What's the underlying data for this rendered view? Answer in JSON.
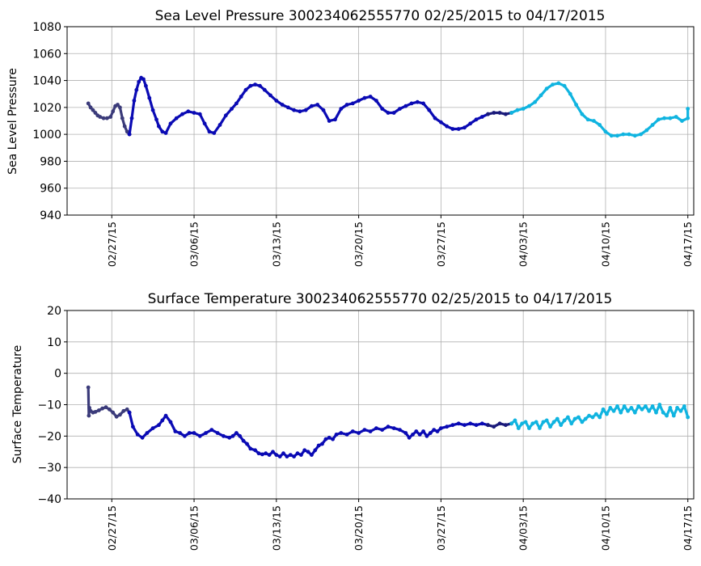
{
  "chart_data": [
    {
      "type": "scatter",
      "title": "Sea Level Pressure 300234062555770  02/25/2015 to 04/17/2015",
      "xlabel": "",
      "ylabel": "Sea Level Pressure",
      "xlim": [
        -1.8,
        51.5
      ],
      "ylim": [
        940,
        1080
      ],
      "yticks": [
        940,
        960,
        980,
        1000,
        1020,
        1040,
        1060,
        1080
      ],
      "xticks": [
        {
          "day": 2,
          "label": "02/27/15"
        },
        {
          "day": 9,
          "label": "03/06/15"
        },
        {
          "day": 16,
          "label": "03/13/15"
        },
        {
          "day": 23,
          "label": "03/20/15"
        },
        {
          "day": 30,
          "label": "03/27/15"
        },
        {
          "day": 37,
          "label": "04/03/15"
        },
        {
          "day": 44,
          "label": "04/10/15"
        },
        {
          "day": 51,
          "label": "04/17/15"
        }
      ],
      "grid": true,
      "x_units": "days since 02/25/2015",
      "series": [
        {
          "name": "segment 1",
          "color": "#3b3b7a",
          "x": [
            0.0,
            0.2,
            0.4,
            0.6,
            0.8,
            1.0,
            1.3,
            1.6,
            1.9,
            2.1,
            2.3,
            2.5,
            2.7,
            2.9,
            3.1,
            3.3,
            3.5
          ],
          "y": [
            1023,
            1020,
            1018,
            1016,
            1014,
            1013,
            1012,
            1012,
            1013,
            1017,
            1021,
            1022,
            1020,
            1012,
            1006,
            1002,
            1000
          ]
        },
        {
          "name": "segment 2",
          "color": "#0a0ab4",
          "x": [
            3.5,
            3.7,
            3.9,
            4.1,
            4.3,
            4.5,
            4.7,
            4.9,
            5.2,
            5.5,
            5.8,
            6.0,
            6.3,
            6.6,
            7.0,
            7.5,
            8.0,
            8.5,
            9.0,
            9.5,
            9.9,
            10.3,
            10.7,
            11.2,
            11.7,
            12.2,
            12.6,
            13.0,
            13.4,
            13.8,
            14.2,
            14.6,
            15.0,
            15.5,
            16.0,
            16.5,
            17.0,
            17.5,
            18.0,
            18.5,
            19.0,
            19.5,
            20.0,
            20.5,
            21.0,
            21.5,
            22.0,
            22.5,
            23.0,
            23.5,
            24.0,
            24.5,
            25.0,
            25.5,
            26.0,
            26.5,
            27.0,
            27.5,
            28.0,
            28.5,
            29.0,
            29.5,
            30.0,
            30.5,
            31.0,
            31.5,
            32.0,
            32.5,
            33.0,
            33.5,
            34.0
          ],
          "y": [
            1000,
            1012,
            1025,
            1033,
            1039,
            1042,
            1041,
            1036,
            1027,
            1018,
            1011,
            1006,
            1002,
            1001,
            1008,
            1012,
            1015,
            1017,
            1016,
            1015,
            1008,
            1002,
            1001,
            1007,
            1014,
            1019,
            1023,
            1028,
            1033,
            1036,
            1037,
            1036,
            1033,
            1029,
            1025,
            1022,
            1020,
            1018,
            1017,
            1018,
            1021,
            1022,
            1018,
            1010,
            1011,
            1019,
            1022,
            1023,
            1025,
            1027,
            1028,
            1025,
            1019,
            1016,
            1016,
            1019,
            1021,
            1023,
            1024,
            1023,
            1018,
            1012,
            1009,
            1006,
            1004,
            1004,
            1005,
            1008,
            1011,
            1013,
            1015
          ]
        },
        {
          "name": "segment 3",
          "color": "#1a1a7a",
          "x": [
            34.0,
            34.5,
            35.0,
            35.5,
            36.0
          ],
          "y": [
            1015,
            1016,
            1016,
            1015,
            1016
          ]
        },
        {
          "name": "segment 4",
          "color": "#10b4e0",
          "x": [
            36.0,
            36.5,
            37.0,
            37.5,
            38.0,
            38.5,
            39.0,
            39.5,
            40.0,
            40.5,
            41.0,
            41.5,
            42.0,
            42.5,
            43.0,
            43.5,
            44.0,
            44.5,
            45.0,
            45.5,
            46.0,
            46.5,
            47.0,
            47.5,
            48.0,
            48.5,
            49.0,
            49.5,
            50.0,
            50.5,
            51.0,
            51.0
          ],
          "y": [
            1016,
            1018,
            1019,
            1021,
            1024,
            1029,
            1034,
            1037,
            1038,
            1036,
            1030,
            1022,
            1015,
            1011,
            1010,
            1007,
            1002,
            999,
            999,
            1000,
            1000,
            999,
            1000,
            1003,
            1007,
            1011,
            1012,
            1012,
            1013,
            1010,
            1012,
            1019
          ]
        }
      ]
    },
    {
      "type": "scatter",
      "title": "Surface Temperature 300234062555770  02/25/2015 to 04/17/2015",
      "xlabel": "",
      "ylabel": "Surface Temperature",
      "xlim": [
        -1.8,
        51.5
      ],
      "ylim": [
        -40,
        20
      ],
      "yticks": [
        -40,
        -30,
        -20,
        -10,
        0,
        10,
        20
      ],
      "ytick_labels": [
        "−40",
        "−30",
        "−20",
        "−10",
        "0",
        "10",
        "20"
      ],
      "xticks": [
        {
          "day": 2,
          "label": "02/27/15"
        },
        {
          "day": 9,
          "label": "03/06/15"
        },
        {
          "day": 16,
          "label": "03/13/15"
        },
        {
          "day": 23,
          "label": "03/20/15"
        },
        {
          "day": 30,
          "label": "03/27/15"
        },
        {
          "day": 37,
          "label": "04/03/15"
        },
        {
          "day": 44,
          "label": "04/10/15"
        },
        {
          "day": 51,
          "label": "04/17/15"
        }
      ],
      "grid": true,
      "x_units": "days since 02/25/2015",
      "series": [
        {
          "name": "segment 1",
          "color": "#3b3b7a",
          "x": [
            0.0,
            0.05,
            0.1,
            0.2,
            0.4,
            0.6,
            0.9,
            1.2,
            1.5,
            1.8,
            2.1,
            2.4,
            2.7,
            3.0,
            3.3,
            3.5
          ],
          "y": [
            -4.5,
            -13.5,
            -11.0,
            -12.0,
            -12.5,
            -12.3,
            -11.8,
            -11.2,
            -10.8,
            -11.5,
            -12.5,
            -13.8,
            -13.2,
            -12.0,
            -11.5,
            -12.5
          ]
        },
        {
          "name": "segment 2",
          "color": "#0a0ab4",
          "x": [
            3.5,
            3.8,
            4.2,
            4.6,
            5.0,
            5.5,
            6.0,
            6.3,
            6.6,
            7.0,
            7.4,
            7.8,
            8.2,
            8.6,
            9.0,
            9.5,
            10.0,
            10.5,
            11.0,
            11.5,
            12.0,
            12.3,
            12.6,
            12.9,
            13.2,
            13.5,
            13.8,
            14.2,
            14.5,
            14.8,
            15.1,
            15.4,
            15.7,
            16.0,
            16.3,
            16.6,
            16.9,
            17.2,
            17.5,
            17.8,
            18.1,
            18.4,
            18.7,
            19.0,
            19.3,
            19.6,
            19.9,
            20.2,
            20.5,
            20.8,
            21.1,
            21.5,
            22.0,
            22.5,
            23.0,
            23.5,
            24.0,
            24.5,
            25.0,
            25.5,
            26.0,
            26.5,
            27.0,
            27.3,
            27.6,
            27.9,
            28.2,
            28.5,
            28.8,
            29.1,
            29.4,
            29.7,
            30.0,
            30.5,
            31.0,
            31.5,
            32.0,
            32.5,
            33.0,
            33.5,
            34.0
          ],
          "y": [
            -12.5,
            -17.0,
            -19.5,
            -20.5,
            -19.0,
            -17.5,
            -16.5,
            -15.0,
            -13.5,
            -15.5,
            -18.5,
            -19.0,
            -20.0,
            -19.0,
            -19.0,
            -20.0,
            -19.0,
            -18.0,
            -19.0,
            -20.0,
            -20.5,
            -20.0,
            -19.0,
            -20.0,
            -21.5,
            -22.5,
            -24.0,
            -24.5,
            -25.5,
            -25.8,
            -25.5,
            -26.0,
            -25.0,
            -26.0,
            -26.5,
            -25.5,
            -26.5,
            -26.0,
            -26.5,
            -25.5,
            -26.0,
            -24.5,
            -25.0,
            -26.0,
            -24.5,
            -23.0,
            -22.5,
            -21.0,
            -20.5,
            -21.0,
            -19.5,
            -19.0,
            -19.5,
            -18.5,
            -19.0,
            -18.0,
            -18.5,
            -17.5,
            -18.0,
            -17.0,
            -17.5,
            -18.0,
            -19.0,
            -20.5,
            -19.5,
            -18.5,
            -19.5,
            -18.5,
            -20.0,
            -19.0,
            -18.0,
            -18.5,
            -17.5,
            -17.0,
            -16.5,
            -16.0,
            -16.5,
            -16.0,
            -16.5,
            -16.0,
            -16.5
          ]
        },
        {
          "name": "segment 3",
          "color": "#1a1a7a",
          "x": [
            34.0,
            34.5,
            35.0,
            35.5,
            36.0
          ],
          "y": [
            -16.5,
            -17.0,
            -16.0,
            -16.5,
            -16.0
          ]
        },
        {
          "name": "segment 4",
          "color": "#10b4e0",
          "x": [
            36.0,
            36.3,
            36.6,
            36.9,
            37.2,
            37.5,
            37.8,
            38.1,
            38.4,
            38.7,
            39.0,
            39.3,
            39.6,
            39.9,
            40.2,
            40.5,
            40.8,
            41.1,
            41.4,
            41.7,
            42.0,
            42.3,
            42.6,
            42.9,
            43.2,
            43.5,
            43.8,
            44.1,
            44.4,
            44.7,
            45.0,
            45.3,
            45.6,
            45.9,
            46.2,
            46.5,
            46.8,
            47.1,
            47.4,
            47.7,
            48.0,
            48.3,
            48.6,
            48.9,
            49.2,
            49.5,
            49.8,
            50.1,
            50.4,
            50.7,
            51.0
          ],
          "y": [
            -16.0,
            -15.0,
            -17.5,
            -16.0,
            -15.5,
            -17.5,
            -16.0,
            -15.5,
            -17.5,
            -15.5,
            -15.0,
            -17.0,
            -15.5,
            -14.5,
            -16.5,
            -15.0,
            -14.0,
            -16.0,
            -14.5,
            -14.0,
            -15.5,
            -14.5,
            -13.5,
            -14.0,
            -13.0,
            -14.0,
            -11.5,
            -13.0,
            -11.0,
            -12.0,
            -10.5,
            -12.5,
            -10.5,
            -12.0,
            -11.0,
            -12.5,
            -10.5,
            -11.5,
            -10.5,
            -12.0,
            -10.5,
            -12.5,
            -10.0,
            -12.5,
            -13.5,
            -11.0,
            -13.5,
            -11.0,
            -12.0,
            -10.5,
            -14.0
          ]
        }
      ]
    }
  ]
}
